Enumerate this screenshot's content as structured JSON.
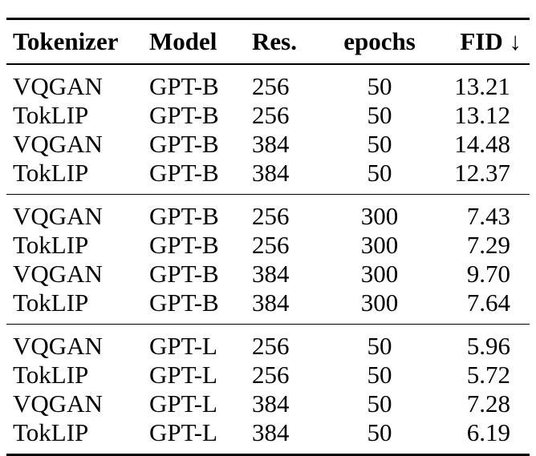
{
  "table": {
    "headers": {
      "tokenizer": "Tokenizer",
      "model": "Model",
      "res": "Res.",
      "epochs": "epochs",
      "fid": "FID ↓"
    },
    "groups": [
      {
        "rows": [
          {
            "tokenizer": "VQGAN",
            "model": "GPT-B",
            "res": "256",
            "epochs": "50",
            "fid": "13.21"
          },
          {
            "tokenizer": "TokLIP",
            "model": "GPT-B",
            "res": "256",
            "epochs": "50",
            "fid": "13.12"
          },
          {
            "tokenizer": "VQGAN",
            "model": "GPT-B",
            "res": "384",
            "epochs": "50",
            "fid": "14.48"
          },
          {
            "tokenizer": "TokLIP",
            "model": "GPT-B",
            "res": "384",
            "epochs": "50",
            "fid": "12.37"
          }
        ]
      },
      {
        "rows": [
          {
            "tokenizer": "VQGAN",
            "model": "GPT-B",
            "res": "256",
            "epochs": "300",
            "fid": "7.43"
          },
          {
            "tokenizer": "TokLIP",
            "model": "GPT-B",
            "res": "256",
            "epochs": "300",
            "fid": "7.29"
          },
          {
            "tokenizer": "VQGAN",
            "model": "GPT-B",
            "res": "384",
            "epochs": "300",
            "fid": "9.70"
          },
          {
            "tokenizer": "TokLIP",
            "model": "GPT-B",
            "res": "384",
            "epochs": "300",
            "fid": "7.64"
          }
        ]
      },
      {
        "rows": [
          {
            "tokenizer": "VQGAN",
            "model": "GPT-L",
            "res": "256",
            "epochs": "50",
            "fid": "5.96"
          },
          {
            "tokenizer": "TokLIP",
            "model": "GPT-L",
            "res": "256",
            "epochs": "50",
            "fid": "5.72"
          },
          {
            "tokenizer": "VQGAN",
            "model": "GPT-L",
            "res": "384",
            "epochs": "50",
            "fid": "7.28"
          },
          {
            "tokenizer": "TokLIP",
            "model": "GPT-L",
            "res": "384",
            "epochs": "50",
            "fid": "6.19"
          }
        ]
      }
    ]
  }
}
